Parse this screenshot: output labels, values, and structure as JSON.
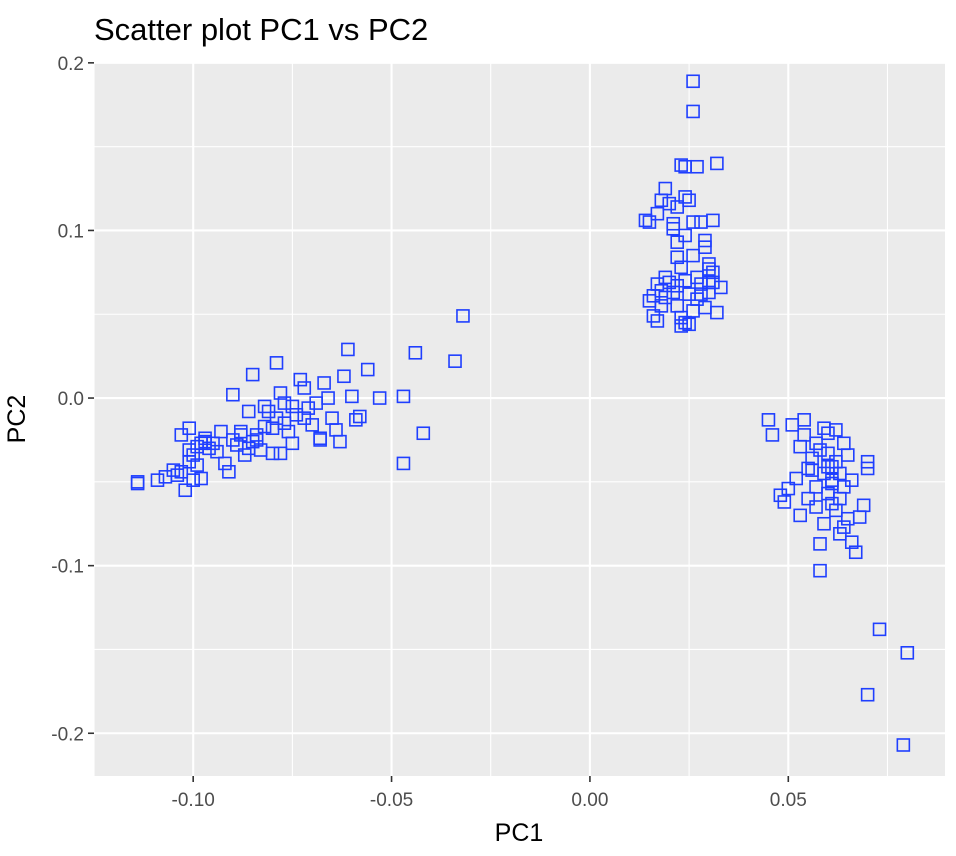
{
  "chart_data": {
    "type": "scatter",
    "title": "Scatter plot PC1 vs PC2",
    "xlabel": "PC1",
    "ylabel": "PC2",
    "xlim": [
      -0.125,
      0.0895
    ],
    "ylim": [
      -0.2255,
      0.2005
    ],
    "x_ticks": [
      -0.1,
      -0.05,
      0.0,
      0.05
    ],
    "x_tick_labels": [
      "-0.10",
      "-0.05",
      "0.00",
      "0.05"
    ],
    "y_ticks": [
      -0.2,
      -0.1,
      0.0,
      0.1,
      0.2
    ],
    "y_tick_labels": [
      "-0.2",
      "-0.1",
      "0.0",
      "0.1",
      "0.2"
    ],
    "grid": true,
    "panel_background": "#ebebeb",
    "marker": "open-square",
    "marker_color": "#1f3fff",
    "points": [
      [
        -0.114,
        -0.05
      ],
      [
        -0.114,
        -0.051
      ],
      [
        -0.109,
        -0.049
      ],
      [
        -0.107,
        -0.047
      ],
      [
        -0.105,
        -0.043
      ],
      [
        -0.103,
        -0.044
      ],
      [
        -0.104,
        -0.046
      ],
      [
        -0.102,
        -0.055
      ],
      [
        -0.101,
        -0.038
      ],
      [
        -0.1,
        -0.049
      ],
      [
        -0.099,
        -0.04
      ],
      [
        -0.098,
        -0.048
      ],
      [
        -0.1,
        -0.034
      ],
      [
        -0.101,
        -0.031
      ],
      [
        -0.099,
        -0.029
      ],
      [
        -0.098,
        -0.027
      ],
      [
        -0.101,
        -0.018
      ],
      [
        -0.097,
        -0.024
      ],
      [
        -0.096,
        -0.03
      ],
      [
        -0.095,
        -0.027
      ],
      [
        -0.103,
        -0.022
      ],
      [
        -0.093,
        -0.02
      ],
      [
        -0.092,
        -0.039
      ],
      [
        -0.091,
        -0.044
      ],
      [
        -0.09,
        -0.025
      ],
      [
        -0.089,
        -0.028
      ],
      [
        -0.088,
        -0.022
      ],
      [
        -0.087,
        -0.034
      ],
      [
        -0.086,
        -0.03
      ],
      [
        -0.085,
        -0.026
      ],
      [
        -0.086,
        -0.008
      ],
      [
        -0.084,
        -0.022
      ],
      [
        -0.083,
        -0.031
      ],
      [
        -0.082,
        -0.017
      ],
      [
        -0.081,
        -0.008
      ],
      [
        -0.08,
        -0.018
      ],
      [
        -0.079,
        -0.012
      ],
      [
        -0.078,
        -0.033
      ],
      [
        -0.079,
        0.021
      ],
      [
        -0.077,
        -0.015
      ],
      [
        -0.076,
        -0.02
      ],
      [
        -0.075,
        -0.005
      ],
      [
        -0.074,
        -0.01
      ],
      [
        -0.073,
        0.011
      ],
      [
        -0.072,
        0.006
      ],
      [
        -0.071,
        -0.006
      ],
      [
        -0.07,
        -0.016
      ],
      [
        -0.069,
        -0.003
      ],
      [
        -0.068,
        -0.024
      ],
      [
        -0.067,
        0.009
      ],
      [
        -0.066,
        0.0
      ],
      [
        -0.065,
        -0.012
      ],
      [
        -0.064,
        -0.019
      ],
      [
        -0.063,
        -0.026
      ],
      [
        -0.062,
        0.013
      ],
      [
        -0.061,
        0.029
      ],
      [
        -0.06,
        0.001
      ],
      [
        -0.059,
        -0.013
      ],
      [
        -0.058,
        -0.011
      ],
      [
        -0.056,
        0.017
      ],
      [
        -0.053,
        0.0
      ],
      [
        -0.047,
        0.001
      ],
      [
        -0.047,
        -0.039
      ],
      [
        -0.044,
        0.027
      ],
      [
        -0.042,
        -0.021
      ],
      [
        -0.034,
        0.022
      ],
      [
        -0.032,
        0.049
      ],
      [
        -0.08,
        -0.033
      ],
      [
        -0.084,
        -0.025
      ],
      [
        -0.077,
        -0.003
      ],
      [
        -0.085,
        0.014
      ],
      [
        -0.09,
        0.002
      ],
      [
        -0.094,
        -0.032
      ],
      [
        -0.097,
        -0.026
      ],
      [
        -0.072,
        -0.012
      ],
      [
        -0.078,
        0.003
      ],
      [
        -0.082,
        -0.005
      ],
      [
        -0.068,
        -0.025
      ],
      [
        -0.075,
        -0.027
      ],
      [
        -0.088,
        -0.02
      ],
      [
        0.014,
        0.106
      ],
      [
        0.015,
        0.105
      ],
      [
        0.017,
        0.11
      ],
      [
        0.018,
        0.118
      ],
      [
        0.019,
        0.125
      ],
      [
        0.02,
        0.116
      ],
      [
        0.021,
        0.101
      ],
      [
        0.022,
        0.093
      ],
      [
        0.023,
        0.139
      ],
      [
        0.024,
        0.138
      ],
      [
        0.024,
        0.12
      ],
      [
        0.025,
        0.118
      ],
      [
        0.026,
        0.105
      ],
      [
        0.026,
        0.189
      ],
      [
        0.026,
        0.171
      ],
      [
        0.027,
        0.138
      ],
      [
        0.028,
        0.105
      ],
      [
        0.029,
        0.094
      ],
      [
        0.03,
        0.08
      ],
      [
        0.031,
        0.106
      ],
      [
        0.032,
        0.14
      ],
      [
        0.031,
        0.075
      ],
      [
        0.03,
        0.069
      ],
      [
        0.029,
        0.054
      ],
      [
        0.028,
        0.068
      ],
      [
        0.027,
        0.072
      ],
      [
        0.026,
        0.085
      ],
      [
        0.025,
        0.062
      ],
      [
        0.024,
        0.07
      ],
      [
        0.023,
        0.078
      ],
      [
        0.022,
        0.067
      ],
      [
        0.021,
        0.063
      ],
      [
        0.02,
        0.069
      ],
      [
        0.019,
        0.06
      ],
      [
        0.018,
        0.055
      ],
      [
        0.017,
        0.068
      ],
      [
        0.016,
        0.061
      ],
      [
        0.015,
        0.058
      ],
      [
        0.016,
        0.049
      ],
      [
        0.017,
        0.046
      ],
      [
        0.022,
        0.055
      ],
      [
        0.023,
        0.048
      ],
      [
        0.024,
        0.045
      ],
      [
        0.023,
        0.043
      ],
      [
        0.025,
        0.044
      ],
      [
        0.026,
        0.052
      ],
      [
        0.027,
        0.059
      ],
      [
        0.028,
        0.062
      ],
      [
        0.032,
        0.051
      ],
      [
        0.033,
        0.066
      ],
      [
        0.031,
        0.069
      ],
      [
        0.03,
        0.063
      ],
      [
        0.021,
        0.104
      ],
      [
        0.022,
        0.114
      ],
      [
        0.024,
        0.097
      ],
      [
        0.029,
        0.09
      ],
      [
        0.03,
        0.077
      ],
      [
        0.019,
        0.072
      ],
      [
        0.018,
        0.064
      ],
      [
        0.022,
        0.084
      ],
      [
        0.045,
        -0.013
      ],
      [
        0.046,
        -0.022
      ],
      [
        0.048,
        -0.058
      ],
      [
        0.049,
        -0.062
      ],
      [
        0.05,
        -0.054
      ],
      [
        0.051,
        -0.016
      ],
      [
        0.052,
        -0.048
      ],
      [
        0.053,
        -0.07
      ],
      [
        0.053,
        -0.029
      ],
      [
        0.054,
        -0.022
      ],
      [
        0.054,
        -0.013
      ],
      [
        0.055,
        -0.042
      ],
      [
        0.055,
        -0.06
      ],
      [
        0.056,
        -0.036
      ],
      [
        0.057,
        -0.053
      ],
      [
        0.057,
        -0.027
      ],
      [
        0.058,
        -0.087
      ],
      [
        0.058,
        -0.103
      ],
      [
        0.059,
        -0.045
      ],
      [
        0.059,
        -0.018
      ],
      [
        0.06,
        -0.021
      ],
      [
        0.06,
        -0.033
      ],
      [
        0.061,
        -0.063
      ],
      [
        0.061,
        -0.049
      ],
      [
        0.062,
        -0.038
      ],
      [
        0.062,
        -0.019
      ],
      [
        0.063,
        -0.06
      ],
      [
        0.063,
        -0.081
      ],
      [
        0.064,
        -0.053
      ],
      [
        0.064,
        -0.027
      ],
      [
        0.065,
        -0.072
      ],
      [
        0.065,
        -0.034
      ],
      [
        0.066,
        -0.086
      ],
      [
        0.066,
        -0.049
      ],
      [
        0.067,
        -0.092
      ],
      [
        0.068,
        -0.071
      ],
      [
        0.069,
        -0.064
      ],
      [
        0.07,
        -0.038
      ],
      [
        0.07,
        -0.042
      ],
      [
        0.056,
        -0.043
      ],
      [
        0.058,
        -0.031
      ],
      [
        0.06,
        -0.057
      ],
      [
        0.061,
        -0.041
      ],
      [
        0.062,
        -0.067
      ],
      [
        0.063,
        -0.045
      ],
      [
        0.057,
        -0.065
      ],
      [
        0.059,
        -0.075
      ],
      [
        0.061,
        -0.051
      ],
      [
        0.064,
        -0.077
      ],
      [
        0.06,
        -0.041
      ],
      [
        0.073,
        -0.138
      ],
      [
        0.08,
        -0.152
      ],
      [
        0.07,
        -0.177
      ],
      [
        0.079,
        -0.207
      ]
    ]
  }
}
